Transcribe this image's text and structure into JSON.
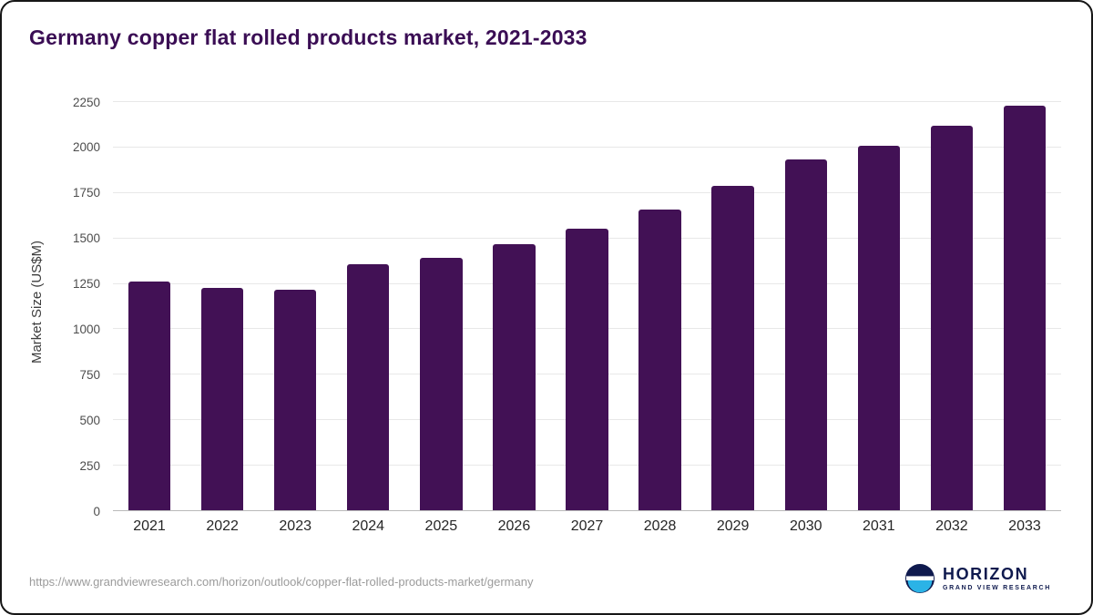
{
  "chart_data": {
    "type": "bar",
    "title": "Germany copper flat rolled products market, 2021-2033",
    "xlabel": "",
    "ylabel": "Market Size (US$M)",
    "categories": [
      "2021",
      "2022",
      "2023",
      "2024",
      "2025",
      "2026",
      "2027",
      "2028",
      "2029",
      "2030",
      "2031",
      "2032",
      "2033"
    ],
    "values": [
      1265,
      1230,
      1220,
      1360,
      1395,
      1470,
      1555,
      1660,
      1790,
      1935,
      2010,
      2120,
      2230
    ],
    "ylim": [
      0,
      2250
    ],
    "ytick_step": 250,
    "grid": true,
    "legend": false,
    "bar_color": "#421155"
  },
  "footer": {
    "source_url": "https://www.grandviewresearch.com/horizon/outlook/copper-flat-rolled-products-market/germany",
    "logo_title": "HORIZON",
    "logo_subtitle": "GRAND VIEW RESEARCH"
  },
  "colors": {
    "title": "#3a0d54",
    "bar": "#421155",
    "gridline": "#e8e8e8",
    "logo_navy": "#0f1a4e",
    "logo_blue": "#2bb3e6"
  }
}
